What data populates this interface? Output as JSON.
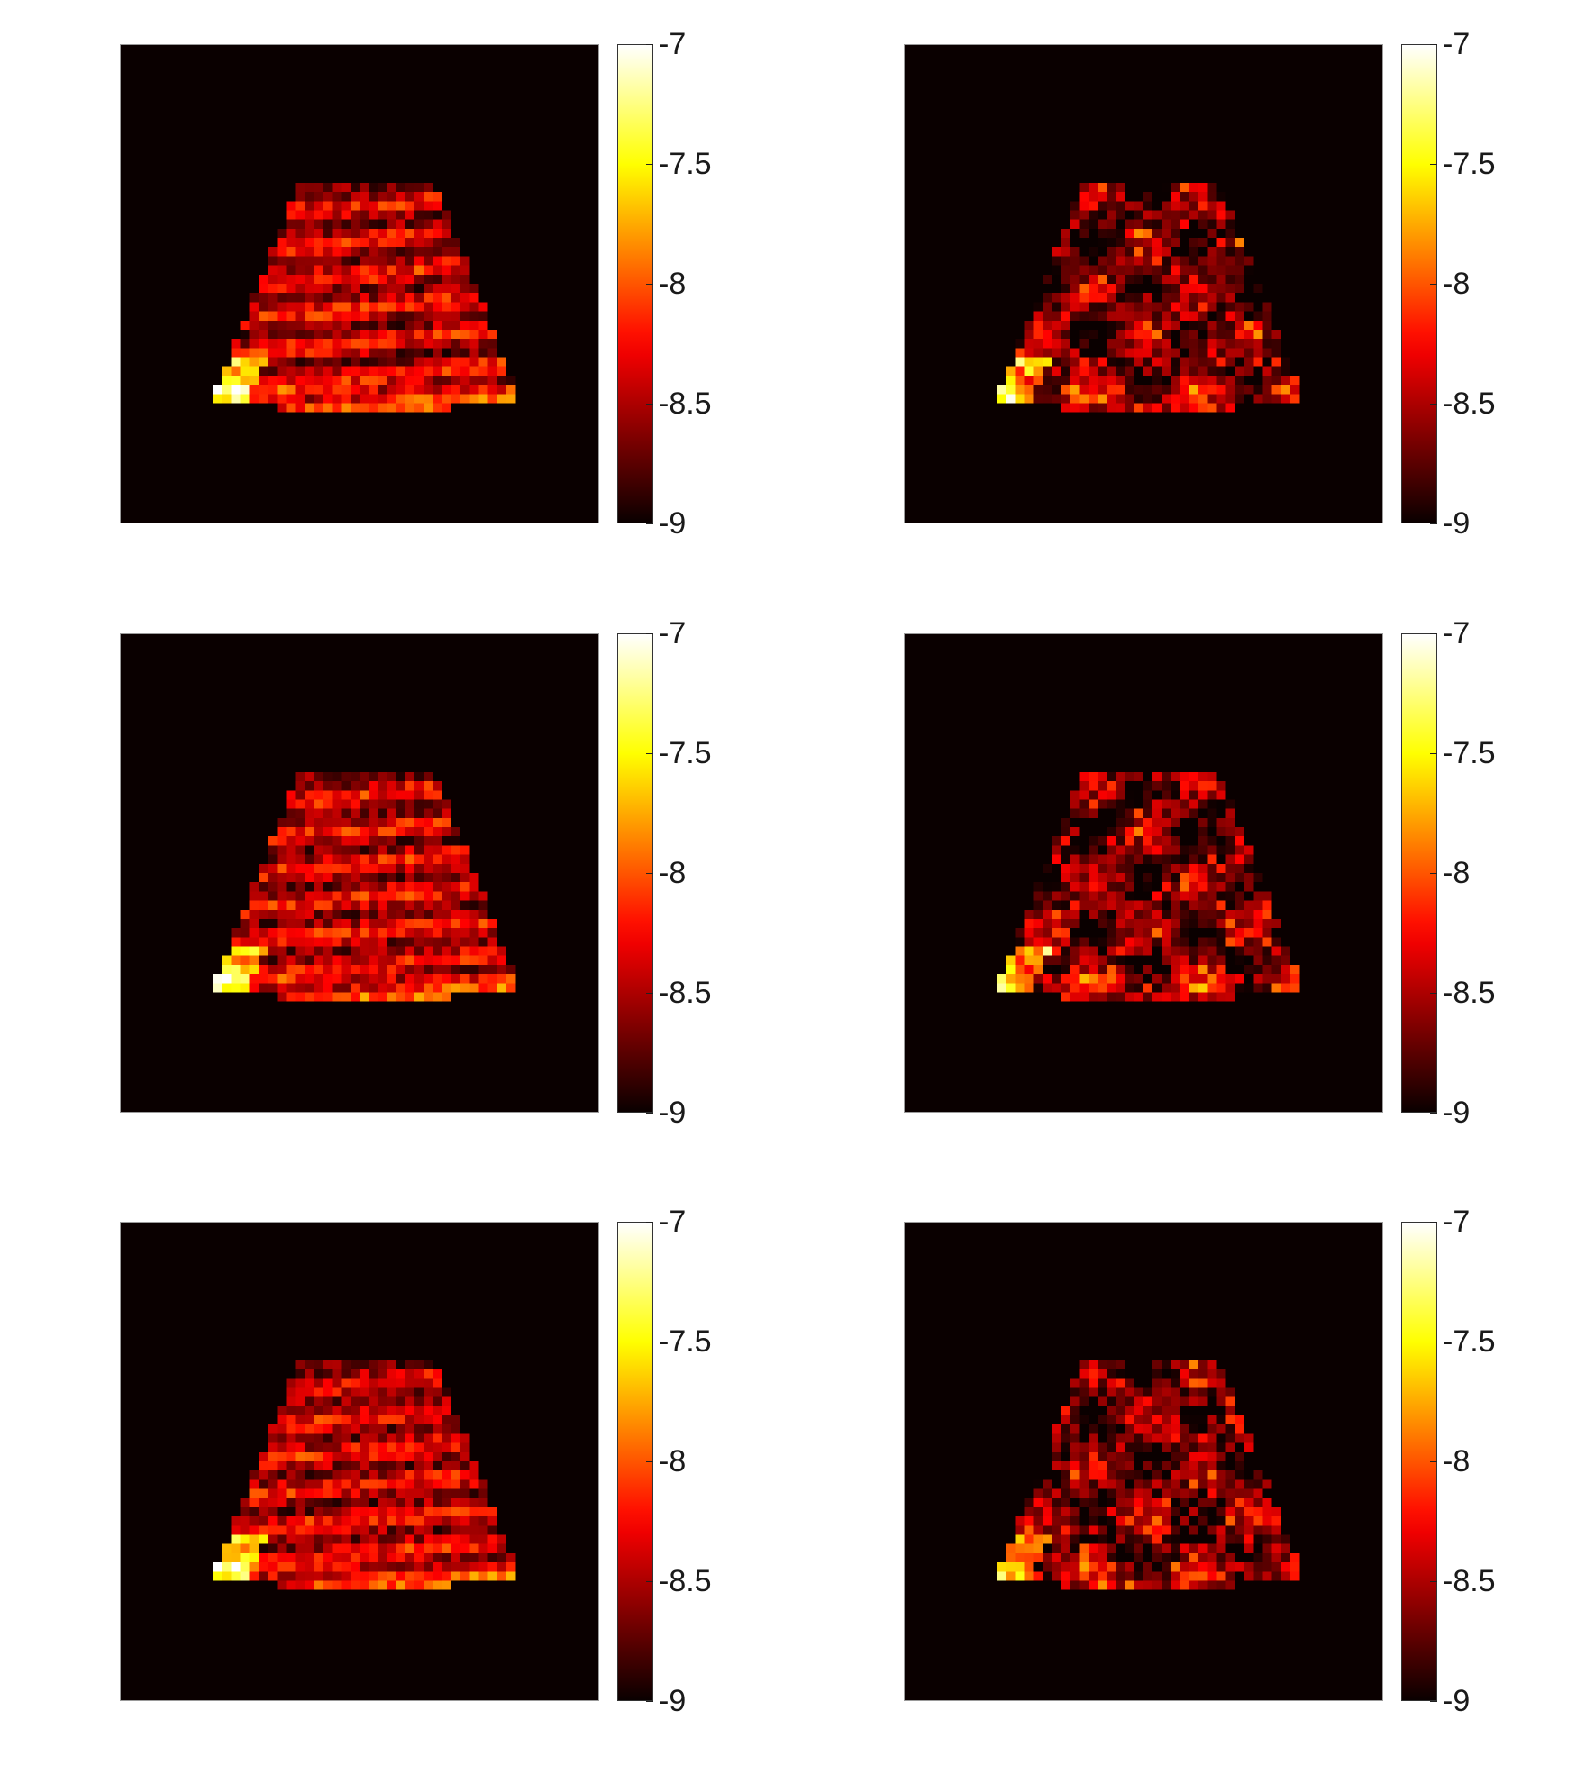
{
  "figure": {
    "colormap": "hot",
    "background_color": "#0b0000"
  },
  "chart_data": [
    {
      "type": "heatmap",
      "panel": "row1-left",
      "clim": [
        -9,
        -7
      ],
      "colorbar_ticks": [
        "-7",
        "-7.5",
        "-8",
        "-8.5",
        "-9"
      ],
      "pattern": "horizontal-banding",
      "grid_cells": 52,
      "seed": 11
    },
    {
      "type": "heatmap",
      "panel": "row1-right",
      "clim": [
        -9,
        -7
      ],
      "colorbar_ticks": [
        "-7",
        "-7.5",
        "-8",
        "-8.5",
        "-9"
      ],
      "pattern": "speckle-structures",
      "grid_cells": 52,
      "seed": 23
    },
    {
      "type": "heatmap",
      "panel": "row2-left",
      "clim": [
        -9,
        -7
      ],
      "colorbar_ticks": [
        "-7",
        "-7.5",
        "-8",
        "-8.5",
        "-9"
      ],
      "pattern": "horizontal-banding",
      "grid_cells": 52,
      "seed": 37
    },
    {
      "type": "heatmap",
      "panel": "row2-right",
      "clim": [
        -9,
        -7
      ],
      "colorbar_ticks": [
        "-7",
        "-7.5",
        "-8",
        "-8.5",
        "-9"
      ],
      "pattern": "speckle-structures",
      "grid_cells": 52,
      "seed": 41
    },
    {
      "type": "heatmap",
      "panel": "row3-left",
      "clim": [
        -9,
        -7
      ],
      "colorbar_ticks": [
        "-7",
        "-7.5",
        "-8",
        "-8.5",
        "-9"
      ],
      "pattern": "horizontal-banding",
      "grid_cells": 52,
      "seed": 53
    },
    {
      "type": "heatmap",
      "panel": "row3-right",
      "clim": [
        -9,
        -7
      ],
      "colorbar_ticks": [
        "-7",
        "-7.5",
        "-8",
        "-8.5",
        "-9"
      ],
      "pattern": "speckle-structures",
      "grid_cells": 52,
      "seed": 67
    }
  ]
}
